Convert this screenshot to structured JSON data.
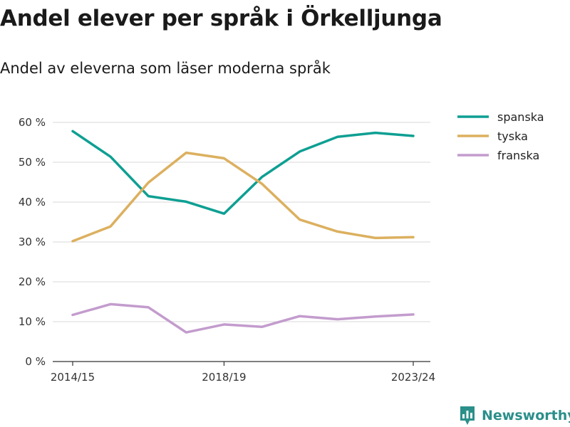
{
  "title": "Andel elever per språk i Örkelljunga",
  "subtitle": "Andel av eleverna som läser moderna språk",
  "brand": {
    "name": "Newsworthy",
    "icon": "newsworthy-logo-icon"
  },
  "chart_data": {
    "type": "line",
    "x": [
      "2014/15",
      "2015/16",
      "2016/17",
      "2017/18",
      "2018/19",
      "2019/20",
      "2020/21",
      "2021/22",
      "2022/23",
      "2023/24"
    ],
    "x_tick_labels": [
      "2014/15",
      "2018/19",
      "2023/24"
    ],
    "y_tick_labels": [
      "0 %",
      "10 %",
      "20 %",
      "30 %",
      "40 %",
      "50 %",
      "60 %"
    ],
    "ylim": [
      0,
      60
    ],
    "y_ticks": [
      0,
      10,
      20,
      30,
      40,
      50,
      60
    ],
    "grid": true,
    "legend_position": "top-right",
    "series": [
      {
        "name": "spanska",
        "color": "#0e9f93",
        "values": [
          57.8,
          51.4,
          41.5,
          40.1,
          37.1,
          46.3,
          52.7,
          56.4,
          57.4,
          56.6
        ]
      },
      {
        "name": "tyska",
        "color": "#dcb05f",
        "values": [
          30.2,
          33.9,
          44.9,
          52.4,
          51.0,
          44.6,
          35.6,
          32.6,
          31.0,
          31.2
        ]
      },
      {
        "name": "franska",
        "color": "#c39ccd",
        "values": [
          11.7,
          14.4,
          13.6,
          7.3,
          9.3,
          8.7,
          11.4,
          10.6,
          11.3,
          11.8
        ]
      }
    ]
  }
}
